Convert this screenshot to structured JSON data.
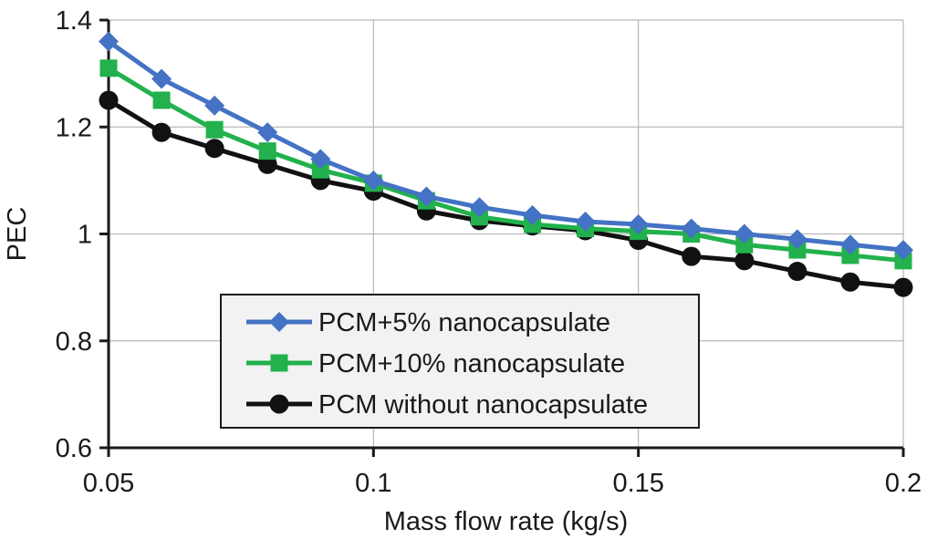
{
  "chart_data": {
    "type": "line",
    "title": "",
    "xlabel": "Mass flow rate (kg/s)",
    "ylabel": "PEC",
    "xlim": [
      0.05,
      0.2
    ],
    "ylim": [
      0.6,
      1.4
    ],
    "xticks": [
      0.05,
      0.1,
      0.15,
      0.2
    ],
    "xtick_labels": [
      "0.05",
      "0.1",
      "0.15",
      "0.2"
    ],
    "yticks": [
      0.6,
      0.8,
      1.0,
      1.2,
      1.4
    ],
    "ytick_labels": [
      "0.6",
      "0.8",
      "1",
      "1.2",
      "1.4"
    ],
    "grid": true,
    "legend_position": "bottom-center",
    "x": [
      0.05,
      0.06,
      0.07,
      0.08,
      0.09,
      0.1,
      0.11,
      0.12,
      0.13,
      0.14,
      0.15,
      0.16,
      0.17,
      0.18,
      0.19,
      0.2
    ],
    "series": [
      {
        "name": "PCM+5% nanocapsulate",
        "color": "#4472c4",
        "marker": "diamond",
        "values": [
          1.36,
          1.29,
          1.24,
          1.19,
          1.14,
          1.1,
          1.07,
          1.05,
          1.035,
          1.023,
          1.018,
          1.01,
          1.0,
          0.99,
          0.98,
          0.97
        ]
      },
      {
        "name": "PCM+10% nanocapsulate",
        "color": "#22b14c",
        "marker": "square",
        "values": [
          1.31,
          1.25,
          1.195,
          1.155,
          1.12,
          1.095,
          1.062,
          1.032,
          1.018,
          1.01,
          1.005,
          1.0,
          0.98,
          0.97,
          0.96,
          0.95
        ]
      },
      {
        "name": "PCM without nanocapsulate",
        "color": "#111111",
        "marker": "circle",
        "values": [
          1.25,
          1.19,
          1.16,
          1.13,
          1.1,
          1.08,
          1.043,
          1.025,
          1.015,
          1.006,
          0.988,
          0.958,
          0.95,
          0.93,
          0.91,
          0.9
        ]
      }
    ]
  }
}
